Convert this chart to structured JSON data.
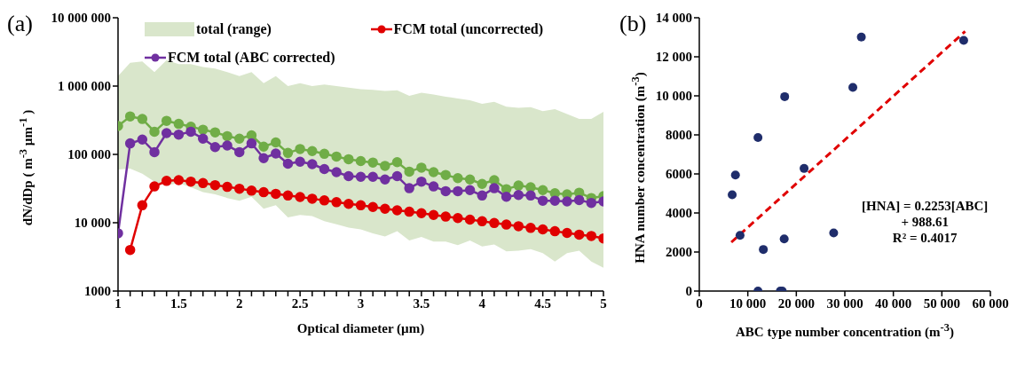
{
  "chart_data": [
    {
      "type": "line",
      "title": "(a)",
      "xlabel": "Optical diameter (µm)",
      "ylabel": "dN/dDp ( m$^{-3}$ µm$^{-1}$ )",
      "log": "y",
      "marker": "circle",
      "legend": "top",
      "x": [
        1,
        1.1,
        1.2,
        1.3,
        1.4,
        1.5,
        1.6,
        1.7,
        1.8,
        1.9,
        2,
        2.1,
        2.2,
        2.3,
        2.4,
        2.5,
        2.6,
        2.7,
        2.8,
        2.9,
        3,
        3.1,
        3.2,
        3.3,
        3.4,
        3.5,
        3.6,
        3.7,
        3.8,
        3.9,
        4,
        4.1,
        4.2,
        4.3,
        4.4,
        4.5,
        4.6,
        4.7,
        4.8,
        4.9,
        5
      ],
      "xlim": [
        1,
        5
      ],
      "xticks": [
        1,
        {
          "value": 1.1,
          "label": null
        },
        {
          "value": 1.2,
          "label": null
        },
        {
          "value": 1.3,
          "label": null
        },
        {
          "value": 1.4,
          "label": null
        },
        1.5,
        {
          "value": 1.6,
          "label": null
        },
        {
          "value": 1.7,
          "label": null
        },
        {
          "value": 1.8,
          "label": null
        },
        {
          "value": 1.9,
          "label": null
        },
        2,
        {
          "value": 2.1,
          "label": null
        },
        {
          "value": 2.2,
          "label": null
        },
        {
          "value": 2.3,
          "label": null
        },
        {
          "value": 2.4,
          "label": null
        },
        2.5,
        {
          "value": 2.6,
          "label": null
        },
        {
          "value": 2.7,
          "label": null
        },
        {
          "value": 2.8,
          "label": null
        },
        {
          "value": 2.9,
          "label": null
        },
        3,
        {
          "value": 3.1,
          "label": null
        },
        {
          "value": 3.2,
          "label": null
        },
        {
          "value": 3.3,
          "label": null
        },
        {
          "value": 3.4,
          "label": null
        },
        3.5,
        {
          "value": 3.6,
          "label": null
        },
        {
          "value": 3.7,
          "label": null
        },
        {
          "value": 3.8,
          "label": null
        },
        {
          "value": 3.9,
          "label": null
        },
        4,
        {
          "value": 4.1,
          "label": null
        },
        {
          "value": 4.2,
          "label": null
        },
        {
          "value": 4.3,
          "label": null
        },
        {
          "value": 4.4,
          "label": null
        },
        4.5,
        {
          "value": 4.6,
          "label": null
        },
        {
          "value": 4.7,
          "label": null
        },
        {
          "value": 4.8,
          "label": null
        },
        {
          "value": 4.9,
          "label": null
        },
        5
      ],
      "ylim": [
        1000,
        10000000
      ],
      "yticks": [
        {
          "value": 1000,
          "label": "1000"
        },
        {
          "value": 10000,
          "label": "10 000"
        },
        {
          "value": 100000,
          "label": "100 000"
        },
        {
          "value": 1000000,
          "label": "1 000 000"
        },
        {
          "value": 10000000,
          "label": "10 000 000"
        }
      ],
      "series": [
        {
          "type": "area",
          "name": "total (range)",
          "color": "#d9e6cb",
          "marker": "none",
          "lower": [
            60000,
            62000,
            52000,
            40000,
            35000,
            38000,
            33000,
            28000,
            26000,
            23000,
            21000,
            24000,
            16000,
            18000,
            12000,
            13000,
            12500,
            10500,
            9500,
            8500,
            8000,
            7000,
            6300,
            7500,
            5500,
            6200,
            5300,
            5300,
            4700,
            5500,
            4500,
            4800,
            3800,
            3900,
            4100,
            3600,
            2700,
            3600,
            3900,
            2700,
            2200
          ],
          "values": [
            null,
            null,
            null,
            null,
            null,
            null,
            null,
            null,
            null,
            null,
            null,
            null,
            null,
            null,
            null,
            null,
            null,
            null,
            null,
            null,
            null,
            null,
            null,
            null,
            null,
            null,
            null,
            null,
            null,
            null,
            null,
            null,
            null,
            null,
            null,
            null,
            null,
            null,
            null,
            null,
            null
          ],
          "upper": [
            1400000,
            2200000,
            2300000,
            1600000,
            2400000,
            2100000,
            2100000,
            1900000,
            1800000,
            1600000,
            1400000,
            1600000,
            1100000,
            1400000,
            1000000,
            1100000,
            1000000,
            1050000,
            1000000,
            950000,
            900000,
            880000,
            850000,
            870000,
            720000,
            800000,
            750000,
            700000,
            660000,
            620000,
            550000,
            590000,
            500000,
            480000,
            490000,
            430000,
            460000,
            390000,
            330000,
            330000,
            420000
          ]
        },
        {
          "color": "#70ad47",
          "values": [
            260000,
            360000,
            330000,
            215000,
            310000,
            280000,
            255000,
            230000,
            210000,
            185000,
            170000,
            190000,
            130000,
            150000,
            105000,
            120000,
            112000,
            102000,
            93000,
            85000,
            80000,
            76000,
            68000,
            77000,
            56000,
            64000,
            55000,
            50000,
            45000,
            43000,
            37000,
            42000,
            31000,
            35000,
            33000,
            30000,
            27000,
            26000,
            27500,
            23000,
            24500
          ]
        },
        {
          "name": "FCM total (uncorrected)",
          "color": "#e00000",
          "values": [
            null,
            4000,
            18000,
            34000,
            41000,
            42000,
            40000,
            38000,
            35500,
            33500,
            31500,
            29500,
            28000,
            26500,
            25000,
            23800,
            22500,
            21200,
            20000,
            18900,
            18000,
            17000,
            16000,
            15200,
            14500,
            13800,
            13000,
            12300,
            11700,
            11100,
            10500,
            9900,
            9400,
            8900,
            8400,
            8000,
            7500,
            7100,
            6700,
            6400,
            5900
          ]
        },
        {
          "name": "FCM total (ABC corrected)",
          "color": "#7030a0",
          "values": [
            7000,
            145000,
            165000,
            108000,
            205000,
            195000,
            215000,
            170000,
            128000,
            135000,
            108000,
            145000,
            88000,
            103000,
            73000,
            78000,
            72000,
            61000,
            55000,
            48000,
            47000,
            47000,
            43000,
            48000,
            32000,
            40000,
            34000,
            29000,
            29000,
            30000,
            25000,
            32000,
            24000,
            25500,
            25000,
            21000,
            21000,
            20500,
            21500,
            19500,
            20500
          ]
        }
      ]
    },
    {
      "type": "scatter",
      "title": "(b)",
      "xlabel": "ABC  type number concentration  (m$^{-3}$)",
      "ylabel": "HNA number concentration (m$^{-3}$)",
      "marker": "circle",
      "xlim": [
        0,
        60000
      ],
      "xticks": [
        0,
        {
          "value": 10000,
          "label": "10 000"
        },
        {
          "value": 20000,
          "label": "20 000"
        },
        {
          "value": 30000,
          "label": "30 000"
        },
        {
          "value": 40000,
          "label": "40 000"
        },
        {
          "value": 50000,
          "label": "50 000"
        },
        {
          "value": 60000,
          "label": "60 000"
        }
      ],
      "ylim": [
        0,
        14000
      ],
      "yticks": [
        0,
        2000,
        4000,
        6000,
        8000,
        {
          "value": 10000,
          "label": "10 000"
        },
        {
          "value": 12000,
          "label": "12 000"
        },
        {
          "value": 14000,
          "label": "14 000"
        }
      ],
      "annotations": [
        "[HNA] = 0.2253[ABC] + 988.61",
        "R² = 0.4017"
      ],
      "series": [
        {
          "color": "#1f2d6b",
          "x": [
            6780,
            7450,
            8400,
            12100,
            12100,
            13200,
            16700,
            17100,
            17500,
            17600,
            21600,
            27700,
            31650,
            33400,
            54500
          ],
          "values": [
            4930,
            5940,
            2850,
            7860,
            0,
            2130,
            0,
            0,
            2670,
            9960,
            6280,
            2980,
            10430,
            13010,
            12840
          ]
        },
        {
          "type": "line",
          "color": "#e00000",
          "line_style": "dashed",
          "marker": "none",
          "x": [
            6600,
            54800
          ],
          "values": [
            2500,
            13300
          ]
        }
      ]
    }
  ]
}
